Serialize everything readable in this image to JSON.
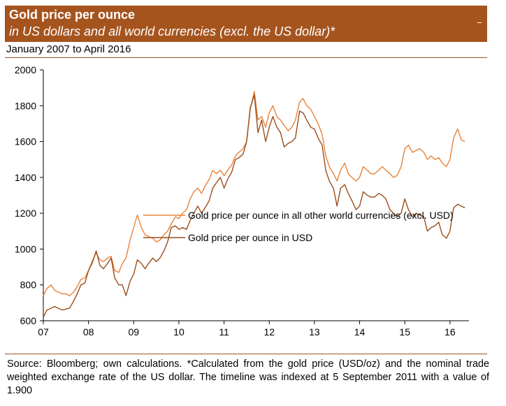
{
  "header": {
    "title": "Gold price per ounce",
    "subtitle": "in US dollars and all world currencies (excl. the US dollar)*",
    "period": "January 2007 to April 2016"
  },
  "source": "Source: Bloomberg; own calculations. *Calculated from the gold price (USD/oz) and the nominal trade weighted exchange rate of the US dollar. The timeline was indexed at 5 September 2011 with a value of 1.900",
  "colors": {
    "header_bg": "#a5541e",
    "world_series": "#e8833a",
    "usd_series": "#9a4e1c"
  },
  "chart_data": {
    "type": "line",
    "title": "Gold price per ounce",
    "xlabel": "",
    "ylabel": "",
    "xlim": [
      2007.0,
      2016.42
    ],
    "ylim": [
      600,
      2000
    ],
    "x_ticks": [
      {
        "value": 2007,
        "label": "07"
      },
      {
        "value": 2008,
        "label": "08"
      },
      {
        "value": 2009,
        "label": "09"
      },
      {
        "value": 2010,
        "label": "10"
      },
      {
        "value": 2011,
        "label": "11"
      },
      {
        "value": 2012,
        "label": "12"
      },
      {
        "value": 2013,
        "label": "13"
      },
      {
        "value": 2014,
        "label": "14"
      },
      {
        "value": 2015,
        "label": "15"
      },
      {
        "value": 2016,
        "label": "16"
      }
    ],
    "y_ticks": [
      600,
      800,
      1000,
      1200,
      1400,
      1600,
      1800,
      2000
    ],
    "legend_position": "center",
    "series": [
      {
        "name": "Gold price per ounce in all other world currencies (excl. USD)",
        "color": "#e8833a",
        "points": [
          [
            2007.0,
            740
          ],
          [
            2007.08,
            780
          ],
          [
            2007.17,
            800
          ],
          [
            2007.25,
            770
          ],
          [
            2007.33,
            760
          ],
          [
            2007.42,
            750
          ],
          [
            2007.5,
            750
          ],
          [
            2007.58,
            740
          ],
          [
            2007.67,
            760
          ],
          [
            2007.75,
            790
          ],
          [
            2007.83,
            830
          ],
          [
            2007.92,
            840
          ],
          [
            2008.0,
            880
          ],
          [
            2008.08,
            930
          ],
          [
            2008.17,
            980
          ],
          [
            2008.25,
            940
          ],
          [
            2008.33,
            930
          ],
          [
            2008.42,
            950
          ],
          [
            2008.5,
            960
          ],
          [
            2008.58,
            880
          ],
          [
            2008.67,
            870
          ],
          [
            2008.75,
            920
          ],
          [
            2008.83,
            950
          ],
          [
            2008.92,
            1050
          ],
          [
            2009.0,
            1120
          ],
          [
            2009.08,
            1190
          ],
          [
            2009.17,
            1120
          ],
          [
            2009.25,
            1080
          ],
          [
            2009.33,
            1070
          ],
          [
            2009.42,
            1060
          ],
          [
            2009.5,
            1040
          ],
          [
            2009.58,
            1050
          ],
          [
            2009.67,
            1080
          ],
          [
            2009.75,
            1100
          ],
          [
            2009.83,
            1140
          ],
          [
            2009.92,
            1180
          ],
          [
            2010.0,
            1170
          ],
          [
            2010.08,
            1200
          ],
          [
            2010.17,
            1220
          ],
          [
            2010.25,
            1280
          ],
          [
            2010.33,
            1320
          ],
          [
            2010.42,
            1340
          ],
          [
            2010.5,
            1310
          ],
          [
            2010.58,
            1350
          ],
          [
            2010.67,
            1390
          ],
          [
            2010.75,
            1440
          ],
          [
            2010.83,
            1420
          ],
          [
            2010.92,
            1440
          ],
          [
            2011.0,
            1410
          ],
          [
            2011.08,
            1440
          ],
          [
            2011.17,
            1470
          ],
          [
            2011.25,
            1520
          ],
          [
            2011.33,
            1540
          ],
          [
            2011.42,
            1560
          ],
          [
            2011.5,
            1600
          ],
          [
            2011.58,
            1780
          ],
          [
            2011.67,
            1880
          ],
          [
            2011.75,
            1720
          ],
          [
            2011.83,
            1740
          ],
          [
            2011.92,
            1680
          ],
          [
            2012.0,
            1760
          ],
          [
            2012.08,
            1800
          ],
          [
            2012.17,
            1740
          ],
          [
            2012.25,
            1720
          ],
          [
            2012.33,
            1690
          ],
          [
            2012.42,
            1660
          ],
          [
            2012.5,
            1680
          ],
          [
            2012.58,
            1720
          ],
          [
            2012.67,
            1820
          ],
          [
            2012.75,
            1840
          ],
          [
            2012.83,
            1800
          ],
          [
            2012.92,
            1780
          ],
          [
            2013.0,
            1740
          ],
          [
            2013.08,
            1700
          ],
          [
            2013.17,
            1640
          ],
          [
            2013.25,
            1520
          ],
          [
            2013.33,
            1460
          ],
          [
            2013.42,
            1420
          ],
          [
            2013.5,
            1380
          ],
          [
            2013.58,
            1440
          ],
          [
            2013.67,
            1480
          ],
          [
            2013.75,
            1420
          ],
          [
            2013.83,
            1400
          ],
          [
            2013.92,
            1380
          ],
          [
            2014.0,
            1400
          ],
          [
            2014.08,
            1460
          ],
          [
            2014.17,
            1440
          ],
          [
            2014.25,
            1420
          ],
          [
            2014.33,
            1420
          ],
          [
            2014.42,
            1440
          ],
          [
            2014.5,
            1460
          ],
          [
            2014.58,
            1440
          ],
          [
            2014.67,
            1420
          ],
          [
            2014.75,
            1400
          ],
          [
            2014.83,
            1410
          ],
          [
            2014.92,
            1460
          ],
          [
            2015.0,
            1560
          ],
          [
            2015.08,
            1580
          ],
          [
            2015.17,
            1540
          ],
          [
            2015.25,
            1550
          ],
          [
            2015.33,
            1560
          ],
          [
            2015.42,
            1540
          ],
          [
            2015.5,
            1500
          ],
          [
            2015.58,
            1520
          ],
          [
            2015.67,
            1500
          ],
          [
            2015.75,
            1510
          ],
          [
            2015.83,
            1480
          ],
          [
            2015.92,
            1460
          ],
          [
            2016.0,
            1500
          ],
          [
            2016.08,
            1620
          ],
          [
            2016.17,
            1670
          ],
          [
            2016.25,
            1610
          ],
          [
            2016.33,
            1600
          ]
        ]
      },
      {
        "name": "Gold price per ounce in USD",
        "color": "#9a4e1c",
        "points": [
          [
            2007.0,
            620
          ],
          [
            2007.08,
            660
          ],
          [
            2007.17,
            670
          ],
          [
            2007.25,
            680
          ],
          [
            2007.33,
            670
          ],
          [
            2007.42,
            660
          ],
          [
            2007.5,
            665
          ],
          [
            2007.58,
            670
          ],
          [
            2007.67,
            710
          ],
          [
            2007.75,
            750
          ],
          [
            2007.83,
            800
          ],
          [
            2007.92,
            810
          ],
          [
            2008.0,
            880
          ],
          [
            2008.08,
            920
          ],
          [
            2008.17,
            990
          ],
          [
            2008.25,
            910
          ],
          [
            2008.33,
            890
          ],
          [
            2008.42,
            920
          ],
          [
            2008.5,
            950
          ],
          [
            2008.58,
            840
          ],
          [
            2008.67,
            800
          ],
          [
            2008.75,
            800
          ],
          [
            2008.83,
            740
          ],
          [
            2008.92,
            820
          ],
          [
            2009.0,
            860
          ],
          [
            2009.08,
            940
          ],
          [
            2009.17,
            920
          ],
          [
            2009.25,
            890
          ],
          [
            2009.33,
            920
          ],
          [
            2009.42,
            950
          ],
          [
            2009.5,
            930
          ],
          [
            2009.58,
            950
          ],
          [
            2009.67,
            990
          ],
          [
            2009.75,
            1040
          ],
          [
            2009.83,
            1120
          ],
          [
            2009.92,
            1130
          ],
          [
            2010.0,
            1110
          ],
          [
            2010.08,
            1120
          ],
          [
            2010.17,
            1110
          ],
          [
            2010.25,
            1160
          ],
          [
            2010.33,
            1200
          ],
          [
            2010.42,
            1240
          ],
          [
            2010.5,
            1200
          ],
          [
            2010.58,
            1230
          ],
          [
            2010.67,
            1270
          ],
          [
            2010.75,
            1340
          ],
          [
            2010.83,
            1370
          ],
          [
            2010.92,
            1400
          ],
          [
            2011.0,
            1340
          ],
          [
            2011.08,
            1390
          ],
          [
            2011.17,
            1430
          ],
          [
            2011.25,
            1500
          ],
          [
            2011.33,
            1510
          ],
          [
            2011.42,
            1530
          ],
          [
            2011.5,
            1600
          ],
          [
            2011.58,
            1790
          ],
          [
            2011.67,
            1860
          ],
          [
            2011.75,
            1650
          ],
          [
            2011.83,
            1720
          ],
          [
            2011.92,
            1600
          ],
          [
            2012.0,
            1680
          ],
          [
            2012.08,
            1740
          ],
          [
            2012.17,
            1680
          ],
          [
            2012.25,
            1650
          ],
          [
            2012.33,
            1570
          ],
          [
            2012.42,
            1590
          ],
          [
            2012.5,
            1600
          ],
          [
            2012.58,
            1620
          ],
          [
            2012.67,
            1770
          ],
          [
            2012.75,
            1760
          ],
          [
            2012.83,
            1720
          ],
          [
            2012.92,
            1680
          ],
          [
            2013.0,
            1670
          ],
          [
            2013.08,
            1620
          ],
          [
            2013.17,
            1580
          ],
          [
            2013.25,
            1440
          ],
          [
            2013.33,
            1380
          ],
          [
            2013.42,
            1340
          ],
          [
            2013.5,
            1240
          ],
          [
            2013.58,
            1340
          ],
          [
            2013.67,
            1360
          ],
          [
            2013.75,
            1310
          ],
          [
            2013.83,
            1270
          ],
          [
            2013.92,
            1220
          ],
          [
            2014.0,
            1240
          ],
          [
            2014.08,
            1320
          ],
          [
            2014.17,
            1300
          ],
          [
            2014.25,
            1290
          ],
          [
            2014.33,
            1290
          ],
          [
            2014.42,
            1310
          ],
          [
            2014.5,
            1300
          ],
          [
            2014.58,
            1280
          ],
          [
            2014.67,
            1220
          ],
          [
            2014.75,
            1200
          ],
          [
            2014.83,
            1180
          ],
          [
            2014.92,
            1200
          ],
          [
            2015.0,
            1280
          ],
          [
            2015.08,
            1220
          ],
          [
            2015.17,
            1180
          ],
          [
            2015.25,
            1200
          ],
          [
            2015.33,
            1190
          ],
          [
            2015.42,
            1180
          ],
          [
            2015.5,
            1100
          ],
          [
            2015.58,
            1120
          ],
          [
            2015.67,
            1130
          ],
          [
            2015.75,
            1150
          ],
          [
            2015.83,
            1080
          ],
          [
            2015.92,
            1060
          ],
          [
            2016.0,
            1100
          ],
          [
            2016.08,
            1230
          ],
          [
            2016.17,
            1250
          ],
          [
            2016.25,
            1240
          ],
          [
            2016.33,
            1230
          ]
        ]
      }
    ]
  }
}
